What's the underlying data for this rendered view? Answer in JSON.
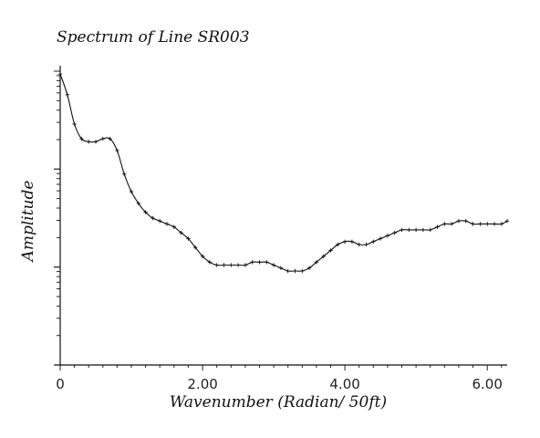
{
  "chart_data": {
    "type": "line",
    "title": "Spectrum of Line SR003",
    "xlabel": "Wavenumber (Radian/ 50ft)",
    "ylabel": "Amplitude",
    "xlim": [
      0,
      6.28
    ],
    "ylim": [
      0,
      1
    ],
    "y_scale": "log",
    "grid": false,
    "x_ticks": [
      {
        "value": 0,
        "label": "0"
      },
      {
        "value": 2.0,
        "label": "2.00"
      },
      {
        "value": 4.0,
        "label": "4.00"
      },
      {
        "value": 6.0,
        "label": "6.00"
      }
    ],
    "series": [
      {
        "name": "",
        "color": "#111111",
        "marker": "plus",
        "x": [
          0.0,
          0.1,
          0.2,
          0.3,
          0.4,
          0.5,
          0.6,
          0.7,
          0.8,
          0.9,
          1.0,
          1.1,
          1.2,
          1.3,
          1.4,
          1.5,
          1.6,
          1.7,
          1.8,
          1.9,
          2.0,
          2.1,
          2.2,
          2.3,
          2.4,
          2.5,
          2.6,
          2.7,
          2.8,
          2.9,
          3.0,
          3.1,
          3.2,
          3.3,
          3.4,
          3.5,
          3.6,
          3.7,
          3.8,
          3.9,
          4.0,
          4.1,
          4.2,
          4.3,
          4.4,
          4.5,
          4.6,
          4.7,
          4.8,
          4.9,
          5.0,
          5.1,
          5.2,
          5.3,
          5.4,
          5.5,
          5.6,
          5.7,
          5.8,
          5.9,
          6.0,
          6.1,
          6.2,
          6.28
        ],
        "y": [
          0.99,
          0.92,
          0.82,
          0.77,
          0.76,
          0.76,
          0.77,
          0.77,
          0.73,
          0.65,
          0.59,
          0.55,
          0.52,
          0.5,
          0.49,
          0.48,
          0.47,
          0.45,
          0.43,
          0.4,
          0.37,
          0.35,
          0.34,
          0.34,
          0.34,
          0.34,
          0.34,
          0.35,
          0.35,
          0.35,
          0.34,
          0.33,
          0.32,
          0.32,
          0.32,
          0.33,
          0.35,
          0.37,
          0.39,
          0.41,
          0.42,
          0.42,
          0.41,
          0.41,
          0.42,
          0.43,
          0.44,
          0.45,
          0.46,
          0.46,
          0.46,
          0.46,
          0.46,
          0.47,
          0.48,
          0.48,
          0.49,
          0.49,
          0.48,
          0.48,
          0.48,
          0.48,
          0.48,
          0.49
        ]
      }
    ]
  }
}
